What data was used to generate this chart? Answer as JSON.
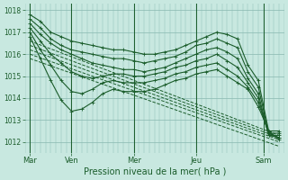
{
  "title": "",
  "xlabel": "Pression niveau de la mer( hPa )",
  "ylabel": "",
  "bg_color": "#c8e8e0",
  "grid_color": "#88b8b0",
  "line_color": "#1a5c2a",
  "ylim": [
    1011.5,
    1018.3
  ],
  "xlim": [
    0,
    100
  ],
  "xtick_positions": [
    2,
    18,
    42,
    66,
    92
  ],
  "xtick_labels": [
    "Mar",
    "Ven",
    "Mer",
    "Jeu",
    "Sam"
  ],
  "ytick_positions": [
    1012,
    1013,
    1014,
    1015,
    1016,
    1017,
    1018
  ],
  "vline_positions": [
    2,
    18,
    42,
    66,
    92
  ],
  "lines": [
    {
      "x": [
        2,
        6,
        10,
        14,
        18,
        22,
        26,
        30,
        34,
        38,
        42,
        46,
        50,
        54,
        58,
        62,
        66,
        70,
        74,
        78,
        82,
        86,
        90,
        94,
        98
      ],
      "y": [
        1017.8,
        1017.5,
        1017.0,
        1016.8,
        1016.6,
        1016.5,
        1016.4,
        1016.3,
        1016.2,
        1016.2,
        1016.1,
        1016.0,
        1016.0,
        1016.1,
        1016.2,
        1016.4,
        1016.6,
        1016.8,
        1017.0,
        1016.9,
        1016.7,
        1015.5,
        1014.8,
        1012.5,
        1012.1
      ],
      "style": "-",
      "marker": "+"
    },
    {
      "x": [
        2,
        6,
        10,
        14,
        18,
        22,
        26,
        30,
        34,
        38,
        42,
        46,
        50,
        54,
        58,
        62,
        66,
        70,
        74,
        78,
        82,
        86,
        90,
        94,
        98
      ],
      "y": [
        1017.6,
        1017.2,
        1016.7,
        1016.4,
        1016.2,
        1016.1,
        1016.0,
        1015.9,
        1015.8,
        1015.8,
        1015.7,
        1015.6,
        1015.7,
        1015.8,
        1015.9,
        1016.1,
        1016.4,
        1016.5,
        1016.7,
        1016.5,
        1016.3,
        1015.2,
        1014.5,
        1012.4,
        1012.2
      ],
      "style": "-",
      "marker": "+"
    },
    {
      "x": [
        2,
        6,
        10,
        14,
        18,
        22,
        26,
        30,
        34,
        38,
        42,
        46,
        50,
        54,
        58,
        62,
        66,
        70,
        74,
        78,
        82,
        86,
        90,
        94,
        98
      ],
      "y": [
        1017.4,
        1016.9,
        1016.5,
        1016.2,
        1016.0,
        1015.8,
        1015.6,
        1015.5,
        1015.4,
        1015.3,
        1015.3,
        1015.2,
        1015.3,
        1015.4,
        1015.6,
        1015.8,
        1016.0,
        1016.2,
        1016.3,
        1016.1,
        1015.8,
        1014.9,
        1014.2,
        1012.3,
        1012.2
      ],
      "style": "-",
      "marker": "+"
    },
    {
      "x": [
        2,
        6,
        10,
        14,
        18,
        22,
        26,
        30,
        34,
        38,
        42,
        46,
        50,
        54,
        58,
        62,
        66,
        70,
        74,
        78,
        82,
        86,
        90,
        94,
        98
      ],
      "y": [
        1017.2,
        1016.6,
        1016.0,
        1015.6,
        1015.2,
        1015.0,
        1014.9,
        1015.0,
        1015.1,
        1015.1,
        1015.0,
        1015.0,
        1015.1,
        1015.2,
        1015.4,
        1015.5,
        1015.7,
        1015.8,
        1016.0,
        1015.7,
        1015.4,
        1014.7,
        1014.0,
        1012.3,
        1012.3
      ],
      "style": "-",
      "marker": "+"
    },
    {
      "x": [
        2,
        6,
        10,
        14,
        18,
        22,
        26,
        30,
        34,
        38,
        42,
        46,
        50,
        54,
        58,
        62,
        66,
        70,
        74,
        78,
        82,
        86,
        90,
        94,
        98
      ],
      "y": [
        1017.0,
        1016.2,
        1015.5,
        1014.8,
        1014.3,
        1014.2,
        1014.4,
        1014.7,
        1014.8,
        1014.7,
        1014.7,
        1014.7,
        1014.8,
        1014.9,
        1015.1,
        1015.2,
        1015.4,
        1015.5,
        1015.6,
        1015.3,
        1015.0,
        1014.5,
        1013.8,
        1012.4,
        1012.4
      ],
      "style": "-",
      "marker": "+"
    },
    {
      "x": [
        2,
        6,
        10,
        14,
        18,
        22,
        26,
        30,
        34,
        38,
        42,
        46,
        50,
        54,
        58,
        62,
        66,
        70,
        74,
        78,
        82,
        86,
        90,
        94,
        98
      ],
      "y": [
        1016.8,
        1015.8,
        1014.8,
        1013.9,
        1013.4,
        1013.5,
        1013.8,
        1014.2,
        1014.4,
        1014.3,
        1014.3,
        1014.3,
        1014.4,
        1014.6,
        1014.8,
        1014.9,
        1015.1,
        1015.2,
        1015.3,
        1015.0,
        1014.7,
        1014.4,
        1013.6,
        1012.5,
        1012.5
      ],
      "style": "-",
      "marker": "+"
    },
    {
      "x": [
        2,
        98
      ],
      "y": [
        1016.6,
        1012.3
      ],
      "style": "--",
      "marker": null
    },
    {
      "x": [
        2,
        98
      ],
      "y": [
        1016.4,
        1012.2
      ],
      "style": "--",
      "marker": null
    },
    {
      "x": [
        2,
        98
      ],
      "y": [
        1016.2,
        1012.1
      ],
      "style": "--",
      "marker": null
    },
    {
      "x": [
        2,
        98
      ],
      "y": [
        1016.0,
        1012.0
      ],
      "style": "--",
      "marker": null
    },
    {
      "x": [
        2,
        98
      ],
      "y": [
        1015.8,
        1011.8
      ],
      "style": "--",
      "marker": null
    }
  ]
}
